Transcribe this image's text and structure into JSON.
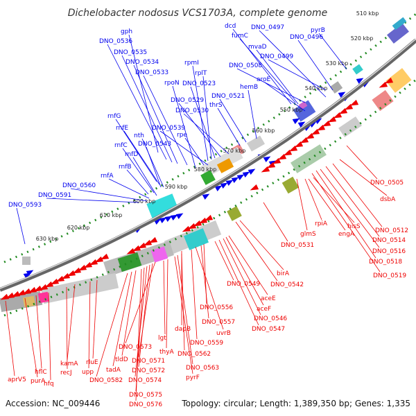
{
  "title": "Dichelobacter nodosus VCS1703A, complete genome",
  "footer": {
    "accession": "Accession: NC_009446",
    "summary": "Topology: circular; Length: 1,389,350 bp; Genes: 1,335"
  },
  "kbp_labels": [
    "510 kbp",
    "520 kbp",
    "530 kbp",
    "540 kbp",
    "550 kbp",
    "560 kbp",
    "570 kbp",
    "580 kbp",
    "590 kbp",
    "600 kbp",
    "610 kbp",
    "620 kbp",
    "630 kbp"
  ],
  "colors": {
    "forward_genes": "#0000ee",
    "reverse_genes": "#ee0000",
    "backbone": "#888888",
    "tick_dots": "#228b22"
  },
  "blue_labels": [
    "gph",
    "DNO_0536",
    "DNO_0535",
    "DNO_0534",
    "DNO_0533",
    "rpoN",
    "rpmI",
    "rplT",
    "DNO_0523",
    "DNO_0529",
    "DNO_0530",
    "DNO_0521",
    "thrS",
    "hemB",
    "dcd",
    "fumC",
    "mvaD",
    "DNO_0497",
    "DNO_0496",
    "pyrB",
    "DNO_0499",
    "DNO_0508",
    "aroE",
    "rnfG",
    "rnfE",
    "nth",
    "rnfC",
    "rnfD",
    "DNO_0539",
    "rpe",
    "DNO_0543",
    "rnfB",
    "rnfA",
    "DNO_0560",
    "DNO_0591",
    "DNO_0593"
  ],
  "red_labels": [
    "DNO_0505",
    "dsbA",
    "DNO_0512",
    "DNO_0514",
    "DNO_0516",
    "DNO_0518",
    "DNO_0519",
    "hisS",
    "engA",
    "rpiA",
    "glmS",
    "DNO_0531",
    "birA",
    "DNO_0542",
    "DNO_0549",
    "aceE",
    "aceF",
    "DNO_0546",
    "DNO_0547",
    "DNO_0556",
    "DNO_0557",
    "uvrB",
    "DNO_0559",
    "dapB",
    "DNO_0562",
    "DNO_0563",
    "pyrF",
    "thyA",
    "lgt",
    "DNO_0573",
    "DNO_0571",
    "DNO_0572",
    "DNO_0574",
    "DNO_0575",
    "DNO_0576",
    "tldD",
    "tadA",
    "DNO_0582",
    "rluE",
    "upp",
    "kamA",
    "recJ",
    "hfq",
    "hflC",
    "purA",
    "aprV5"
  ]
}
